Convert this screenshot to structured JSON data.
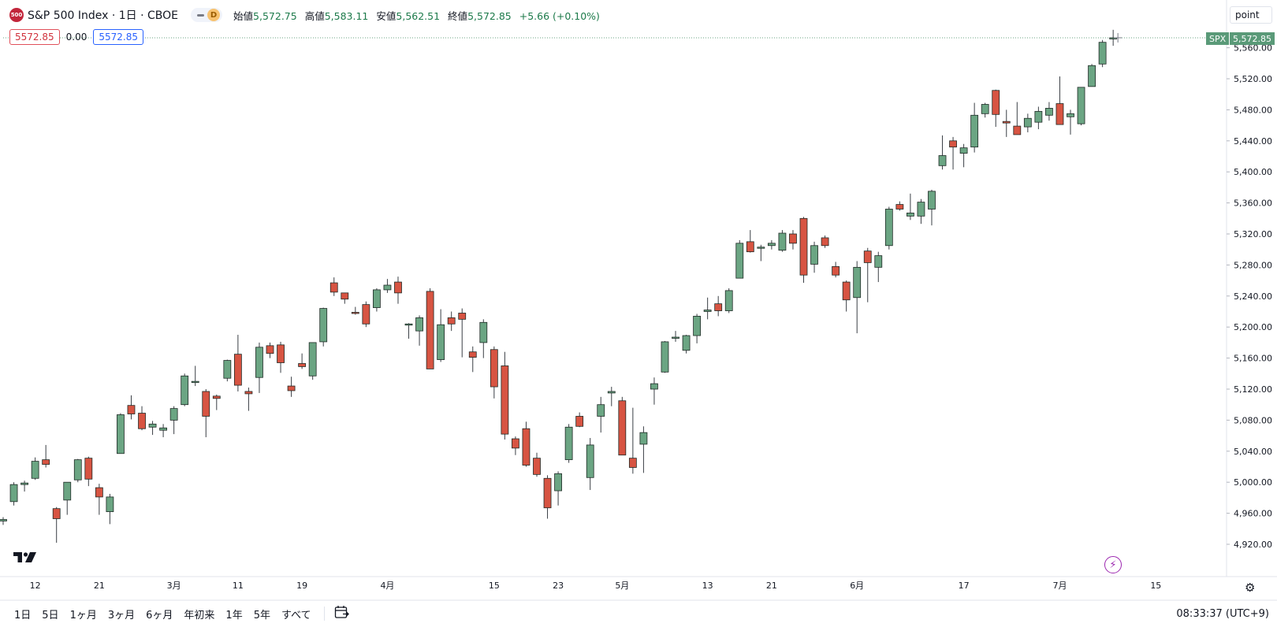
{
  "header": {
    "badge": "500",
    "symbol_title": "S&P 500 Index · 1日 · CBOE",
    "pill_letter": "D",
    "ohlc": {
      "open_label": "始値",
      "open": "5,572.75",
      "high_label": "高値",
      "high": "5,583.11",
      "low_label": "安値",
      "low": "5,562.51",
      "close_label": "終値",
      "close": "5,572.85",
      "change": "+5.66 (+0.10%)"
    }
  },
  "price_boxes": {
    "left": "5572.85",
    "mid": "0.00",
    "right": "5572.85"
  },
  "scale_button": "point",
  "last_price_tag": {
    "symbol": "SPX",
    "price": "5,572.85"
  },
  "bottom_bar": {
    "ranges": [
      "1日",
      "5日",
      "1ヶ月",
      "3ヶ月",
      "6ヶ月",
      "年初来",
      "1年",
      "5年",
      "すべて"
    ],
    "clock": "08:33:37 (UTC+9)"
  },
  "icons": [
    "tradingview-logo",
    "lightning-icon",
    "gear-icon",
    "calendar-goto-icon",
    "dash-icon"
  ],
  "colors": {
    "up": "#6ba583",
    "down": "#d75442",
    "badge": "#c2263b",
    "accent": "#2962ff"
  },
  "chart_data": {
    "type": "candlestick",
    "title": "S&P 500 Index · 1日 · CBOE",
    "y_ticks": [
      4920,
      4960,
      5000,
      5040,
      5080,
      5120,
      5160,
      5200,
      5240,
      5280,
      5320,
      5360,
      5400,
      5440,
      5480,
      5520,
      5560
    ],
    "y_tick_labels": [
      "4,920.00",
      "4,960.00",
      "5,000.00",
      "5,040.00",
      "5,080.00",
      "5,120.00",
      "5,160.00",
      "5,200.00",
      "5,240.00",
      "5,280.00",
      "5,320.00",
      "5,360.00",
      "5,400.00",
      "5,440.00",
      "5,480.00",
      "5,520.00",
      "5,560.00"
    ],
    "ylim": [
      4890,
      5590
    ],
    "x_ticks": [
      {
        "label": "12",
        "index": 3
      },
      {
        "label": "21",
        "index": 9
      },
      {
        "label": "3月",
        "index": 16
      },
      {
        "label": "11",
        "index": 22
      },
      {
        "label": "19",
        "index": 28
      },
      {
        "label": "4月",
        "index": 36
      },
      {
        "label": "15",
        "index": 46
      },
      {
        "label": "23",
        "index": 52
      },
      {
        "label": "5月",
        "index": 58
      },
      {
        "label": "13",
        "index": 66
      },
      {
        "label": "21",
        "index": 72
      },
      {
        "label": "6月",
        "index": 80
      },
      {
        "label": "17",
        "index": 90
      },
      {
        "label": "7月",
        "index": 99
      },
      {
        "label": "15",
        "index": 108
      }
    ],
    "candles": [
      {
        "o": 4950,
        "h": 4955,
        "l": 4945,
        "c": 4952
      },
      {
        "o": 4975,
        "h": 5000,
        "l": 4970,
        "c": 4997
      },
      {
        "o": 4997,
        "h": 5002,
        "l": 4988,
        "c": 4999
      },
      {
        "o": 5005,
        "h": 5032,
        "l": 5003,
        "c": 5027
      },
      {
        "o": 5029,
        "h": 5048,
        "l": 5019,
        "c": 5023
      },
      {
        "o": 4966,
        "h": 4968,
        "l": 4922,
        "c": 4953
      },
      {
        "o": 4977,
        "h": 5000,
        "l": 4958,
        "c": 5000
      },
      {
        "o": 5003,
        "h": 5030,
        "l": 5000,
        "c": 5029
      },
      {
        "o": 5031,
        "h": 5033,
        "l": 4995,
        "c": 5004
      },
      {
        "o": 4993,
        "h": 4998,
        "l": 4958,
        "c": 4981
      },
      {
        "o": 4962,
        "h": 4985,
        "l": 4946,
        "c": 4981
      },
      {
        "o": 5037,
        "h": 5089,
        "l": 5037,
        "c": 5087
      },
      {
        "o": 5099,
        "h": 5112,
        "l": 5081,
        "c": 5088
      },
      {
        "o": 5089,
        "h": 5098,
        "l": 5067,
        "c": 5069
      },
      {
        "o": 5071,
        "h": 5079,
        "l": 5061,
        "c": 5075
      },
      {
        "o": 5067,
        "h": 5075,
        "l": 5058,
        "c": 5070
      },
      {
        "o": 5080,
        "h": 5098,
        "l": 5062,
        "c": 5095
      },
      {
        "o": 5100,
        "h": 5140,
        "l": 5098,
        "c": 5137
      },
      {
        "o": 5130,
        "h": 5150,
        "l": 5124,
        "c": 5130
      },
      {
        "o": 5117,
        "h": 5120,
        "l": 5058,
        "c": 5085
      },
      {
        "o": 5111,
        "h": 5113,
        "l": 5093,
        "c": 5108
      },
      {
        "o": 5134,
        "h": 5158,
        "l": 5130,
        "c": 5157
      },
      {
        "o": 5165,
        "h": 5190,
        "l": 5117,
        "c": 5125
      },
      {
        "o": 5117,
        "h": 5122,
        "l": 5092,
        "c": 5114
      },
      {
        "o": 5135,
        "h": 5180,
        "l": 5115,
        "c": 5174
      },
      {
        "o": 5176,
        "h": 5180,
        "l": 5160,
        "c": 5166
      },
      {
        "o": 5177,
        "h": 5181,
        "l": 5141,
        "c": 5154
      },
      {
        "o": 5124,
        "h": 5136,
        "l": 5110,
        "c": 5118
      },
      {
        "o": 5153,
        "h": 5166,
        "l": 5146,
        "c": 5149
      },
      {
        "o": 5137,
        "h": 5180,
        "l": 5132,
        "c": 5180
      },
      {
        "o": 5181,
        "h": 5225,
        "l": 5175,
        "c": 5224
      },
      {
        "o": 5257,
        "h": 5264,
        "l": 5240,
        "c": 5245
      },
      {
        "o": 5244,
        "h": 5244,
        "l": 5230,
        "c": 5236
      },
      {
        "o": 5219,
        "h": 5226,
        "l": 5216,
        "c": 5218
      },
      {
        "o": 5229,
        "h": 5233,
        "l": 5200,
        "c": 5204
      },
      {
        "o": 5225,
        "h": 5250,
        "l": 5220,
        "c": 5248
      },
      {
        "o": 5248,
        "h": 5262,
        "l": 5244,
        "c": 5254
      },
      {
        "o": 5258,
        "h": 5265,
        "l": 5230,
        "c": 5244
      },
      {
        "o": 5203,
        "h": 5205,
        "l": 5185,
        "c": 5204
      },
      {
        "o": 5195,
        "h": 5215,
        "l": 5176,
        "c": 5212
      },
      {
        "o": 5246,
        "h": 5250,
        "l": 5146,
        "c": 5146
      },
      {
        "o": 5158,
        "h": 5223,
        "l": 5155,
        "c": 5203
      },
      {
        "o": 5212,
        "h": 5220,
        "l": 5195,
        "c": 5204
      },
      {
        "o": 5218,
        "h": 5224,
        "l": 5161,
        "c": 5210
      },
      {
        "o": 5168,
        "h": 5175,
        "l": 5142,
        "c": 5161
      },
      {
        "o": 5180,
        "h": 5210,
        "l": 5160,
        "c": 5206
      },
      {
        "o": 5171,
        "h": 5175,
        "l": 5108,
        "c": 5123
      },
      {
        "o": 5150,
        "h": 5168,
        "l": 5055,
        "c": 5062
      },
      {
        "o": 5056,
        "h": 5059,
        "l": 5035,
        "c": 5044
      },
      {
        "o": 5069,
        "h": 5078,
        "l": 5020,
        "c": 5022
      },
      {
        "o": 5031,
        "h": 5038,
        "l": 5007,
        "c": 5010
      },
      {
        "o": 5005,
        "h": 5009,
        "l": 4953,
        "c": 4967
      },
      {
        "o": 4989,
        "h": 5014,
        "l": 4970,
        "c": 5011
      },
      {
        "o": 5029,
        "h": 5075,
        "l": 5025,
        "c": 5071
      },
      {
        "o": 5085,
        "h": 5090,
        "l": 5071,
        "c": 5072
      },
      {
        "o": 5006,
        "h": 5057,
        "l": 4990,
        "c": 5048
      },
      {
        "o": 5085,
        "h": 5110,
        "l": 5064,
        "c": 5100
      },
      {
        "o": 5115,
        "h": 5123,
        "l": 5098,
        "c": 5117
      },
      {
        "o": 5105,
        "h": 5110,
        "l": 5035,
        "c": 5035
      },
      {
        "o": 5031,
        "h": 5096,
        "l": 5011,
        "c": 5019
      },
      {
        "o": 5049,
        "h": 5072,
        "l": 5012,
        "c": 5064
      },
      {
        "o": 5120,
        "h": 5135,
        "l": 5100,
        "c": 5127
      },
      {
        "o": 5142,
        "h": 5182,
        "l": 5141,
        "c": 5181
      },
      {
        "o": 5187,
        "h": 5195,
        "l": 5181,
        "c": 5187
      },
      {
        "o": 5170,
        "h": 5190,
        "l": 5166,
        "c": 5189
      },
      {
        "o": 5189,
        "h": 5217,
        "l": 5179,
        "c": 5214
      },
      {
        "o": 5220,
        "h": 5238,
        "l": 5210,
        "c": 5222
      },
      {
        "o": 5230,
        "h": 5240,
        "l": 5214,
        "c": 5221
      },
      {
        "o": 5221,
        "h": 5250,
        "l": 5218,
        "c": 5247
      },
      {
        "o": 5263,
        "h": 5312,
        "l": 5263,
        "c": 5308
      },
      {
        "o": 5310,
        "h": 5325,
        "l": 5296,
        "c": 5297
      },
      {
        "o": 5302,
        "h": 5306,
        "l": 5285,
        "c": 5303
      },
      {
        "o": 5305,
        "h": 5312,
        "l": 5300,
        "c": 5308
      },
      {
        "o": 5299,
        "h": 5325,
        "l": 5297,
        "c": 5321
      },
      {
        "o": 5320,
        "h": 5325,
        "l": 5300,
        "c": 5308
      },
      {
        "o": 5340,
        "h": 5342,
        "l": 5257,
        "c": 5267
      },
      {
        "o": 5281,
        "h": 5310,
        "l": 5270,
        "c": 5305
      },
      {
        "o": 5315,
        "h": 5318,
        "l": 5302,
        "c": 5305
      },
      {
        "o": 5278,
        "h": 5284,
        "l": 5264,
        "c": 5267
      },
      {
        "o": 5258,
        "h": 5260,
        "l": 5220,
        "c": 5235
      },
      {
        "o": 5238,
        "h": 5285,
        "l": 5192,
        "c": 5277
      },
      {
        "o": 5298,
        "h": 5302,
        "l": 5232,
        "c": 5283
      },
      {
        "o": 5277,
        "h": 5297,
        "l": 5258,
        "c": 5292
      },
      {
        "o": 5305,
        "h": 5355,
        "l": 5300,
        "c": 5352
      },
      {
        "o": 5358,
        "h": 5362,
        "l": 5350,
        "c": 5352
      },
      {
        "o": 5343,
        "h": 5372,
        "l": 5338,
        "c": 5347
      },
      {
        "o": 5343,
        "h": 5365,
        "l": 5333,
        "c": 5361
      },
      {
        "o": 5352,
        "h": 5377,
        "l": 5331,
        "c": 5375
      },
      {
        "o": 5408,
        "h": 5447,
        "l": 5403,
        "c": 5421
      },
      {
        "o": 5440,
        "h": 5445,
        "l": 5403,
        "c": 5432
      },
      {
        "o": 5424,
        "h": 5436,
        "l": 5406,
        "c": 5431
      },
      {
        "o": 5432,
        "h": 5489,
        "l": 5425,
        "c": 5473
      },
      {
        "o": 5475,
        "h": 5489,
        "l": 5470,
        "c": 5487
      },
      {
        "o": 5505,
        "h": 5506,
        "l": 5458,
        "c": 5474
      },
      {
        "o": 5465,
        "h": 5480,
        "l": 5445,
        "c": 5463
      },
      {
        "o": 5459,
        "h": 5490,
        "l": 5451,
        "c": 5448
      },
      {
        "o": 5458,
        "h": 5475,
        "l": 5451,
        "c": 5469
      },
      {
        "o": 5464,
        "h": 5484,
        "l": 5455,
        "c": 5478
      },
      {
        "o": 5473,
        "h": 5490,
        "l": 5466,
        "c": 5482
      },
      {
        "o": 5488,
        "h": 5523,
        "l": 5461,
        "c": 5461
      },
      {
        "o": 5471,
        "h": 5480,
        "l": 5448,
        "c": 5475
      },
      {
        "o": 5462,
        "h": 5509,
        "l": 5460,
        "c": 5509
      },
      {
        "o": 5510,
        "h": 5539,
        "l": 5510,
        "c": 5537
      },
      {
        "o": 5539,
        "h": 5570,
        "l": 5535,
        "c": 5567
      },
      {
        "o": 5572.75,
        "h": 5583.11,
        "l": 5562.51,
        "c": 5572.85
      }
    ],
    "last_price": 5572.85,
    "last_price_label": "5,572.85",
    "grid": false,
    "legend": "top-left"
  }
}
